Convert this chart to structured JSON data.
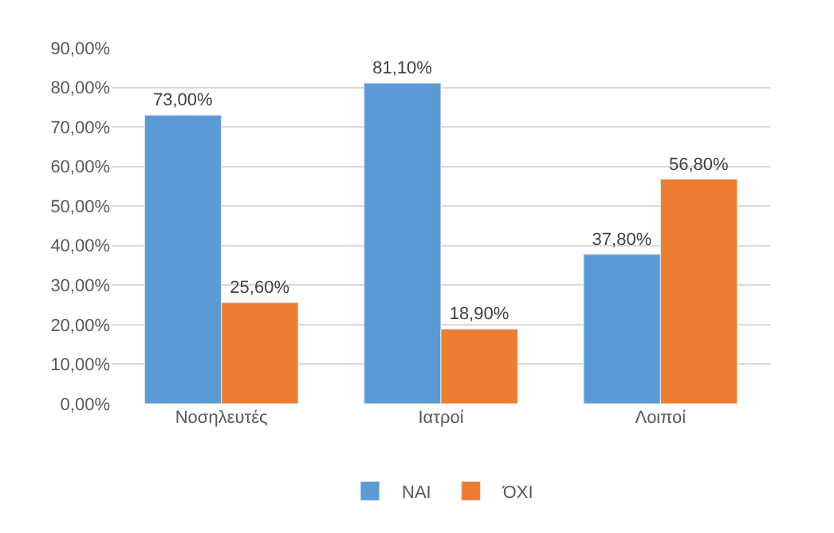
{
  "chart_data": {
    "type": "bar",
    "categories": [
      "Νοσηλευτές",
      "Ιατροί",
      "Λοιποί"
    ],
    "series": [
      {
        "name": "ΝΑΙ",
        "color": "#5b9bd5",
        "values": [
          73.0,
          81.1,
          37.8
        ],
        "value_labels": [
          "73,00%",
          "81,10%",
          "37,80%"
        ]
      },
      {
        "name": "ΌΧΙ",
        "color": "#ed7d31",
        "values": [
          25.6,
          18.9,
          56.8
        ],
        "value_labels": [
          "25,60%",
          "18,90%",
          "56,80%"
        ]
      }
    ],
    "ylim": [
      0,
      90
    ],
    "yticks": [
      {
        "value": 0,
        "label": "0,00%"
      },
      {
        "value": 10,
        "label": "10,00%"
      },
      {
        "value": 20,
        "label": "20,00%"
      },
      {
        "value": 30,
        "label": "30,00%"
      },
      {
        "value": 40,
        "label": "40,00%"
      },
      {
        "value": 50,
        "label": "50,00%"
      },
      {
        "value": 60,
        "label": "60,00%"
      },
      {
        "value": 70,
        "label": "70,00%"
      },
      {
        "value": 80,
        "label": "80,00%"
      },
      {
        "value": 90,
        "label": "90,00%"
      }
    ],
    "grid": "y",
    "legend": "bottom"
  }
}
